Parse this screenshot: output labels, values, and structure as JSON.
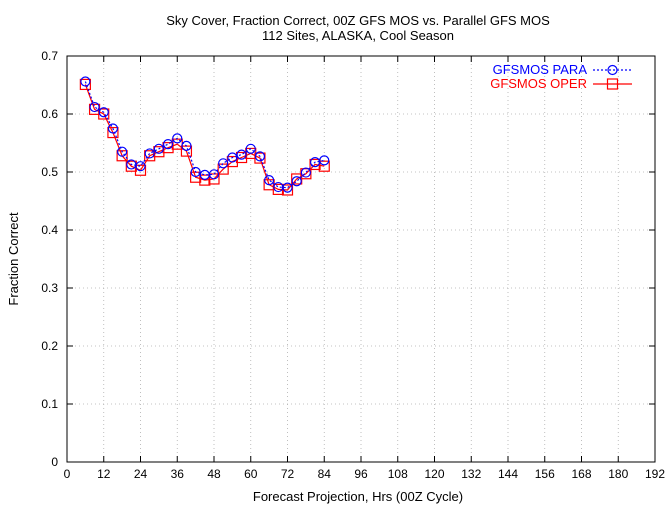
{
  "chart_data": {
    "type": "line",
    "title": "Sky Cover, Fraction Correct, 00Z GFS MOS vs. Parallel GFS MOS",
    "subtitle": "112 Sites, ALASKA, Cool Season",
    "xlabel": "Forecast Projection, Hrs (00Z Cycle)",
    "ylabel": "Fraction Correct",
    "xlim": [
      0,
      192
    ],
    "ylim": [
      0,
      0.7
    ],
    "x_ticks": [
      0,
      12,
      24,
      36,
      48,
      60,
      72,
      84,
      96,
      108,
      120,
      132,
      144,
      156,
      168,
      180,
      192
    ],
    "y_ticks": [
      0,
      0.1,
      0.2,
      0.3,
      0.4,
      0.5,
      0.6,
      0.7
    ],
    "grid": true,
    "legend_position": "top-right",
    "x": [
      6,
      9,
      12,
      15,
      18,
      21,
      24,
      27,
      30,
      33,
      36,
      39,
      42,
      45,
      48,
      51,
      54,
      57,
      60,
      63,
      66,
      69,
      72,
      75,
      78,
      81,
      84
    ],
    "series": [
      {
        "name": "GFSMOS PARA",
        "color": "#0000ff",
        "marker": "circle",
        "line_style": "dotted",
        "values": [
          0.656,
          0.612,
          0.603,
          0.575,
          0.535,
          0.513,
          0.51,
          0.532,
          0.54,
          0.548,
          0.558,
          0.545,
          0.5,
          0.495,
          0.496,
          0.515,
          0.525,
          0.53,
          0.54,
          0.527,
          0.486,
          0.474,
          0.473,
          0.484,
          0.499,
          0.517,
          0.52
        ]
      },
      {
        "name": "GFSMOS OPER",
        "color": "#ff0000",
        "marker": "square",
        "line_style": "solid",
        "values": [
          0.651,
          0.608,
          0.6,
          0.568,
          0.528,
          0.51,
          0.503,
          0.528,
          0.535,
          0.542,
          0.548,
          0.536,
          0.491,
          0.486,
          0.488,
          0.505,
          0.518,
          0.525,
          0.532,
          0.524,
          0.478,
          0.47,
          0.469,
          0.488,
          0.497,
          0.513,
          0.51
        ]
      }
    ]
  }
}
